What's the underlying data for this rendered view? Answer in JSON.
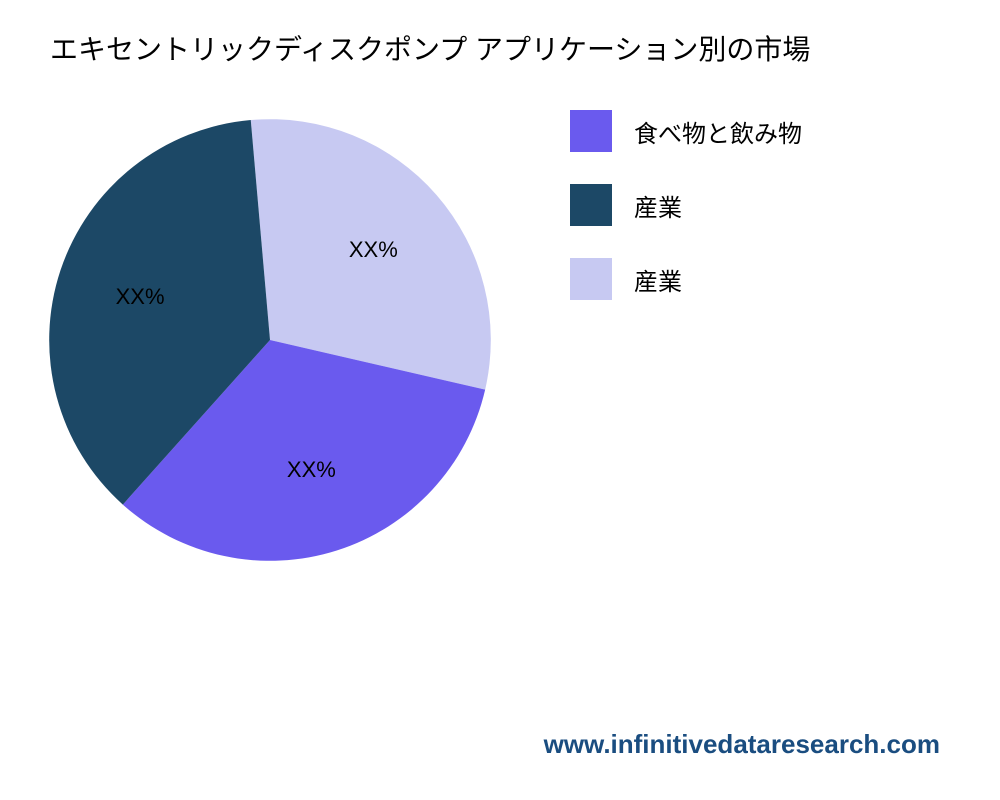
{
  "chart": {
    "type": "pie",
    "title": "エキセントリックディスクポンプ アプリケーション別の市場",
    "title_fontsize": 28,
    "title_color": "#000000",
    "background_color": "#ffffff",
    "slices": [
      {
        "label": "産業",
        "value": 30,
        "color": "#c7c9f2",
        "display_label": "XX%"
      },
      {
        "label": "食べ物と飲み物",
        "value": 33,
        "color": "#6a5aee",
        "display_label": "XX%"
      },
      {
        "label": "産業",
        "value": 37,
        "color": "#1c4866",
        "display_label": "XX%"
      }
    ],
    "start_angle_deg": -5,
    "legend": {
      "items": [
        {
          "label": "食べ物と飲み物",
          "color": "#6a5aee"
        },
        {
          "label": "産業",
          "color": "#1c4866"
        },
        {
          "label": "産業",
          "color": "#c7c9f2"
        }
      ],
      "swatch_size": 42,
      "label_fontsize": 24
    },
    "slice_label_fontsize": 22,
    "slice_label_color": "#000000"
  },
  "footer": {
    "url": "www.infinitivedataresearch.com",
    "color": "#1a4d80",
    "fontsize": 26
  }
}
